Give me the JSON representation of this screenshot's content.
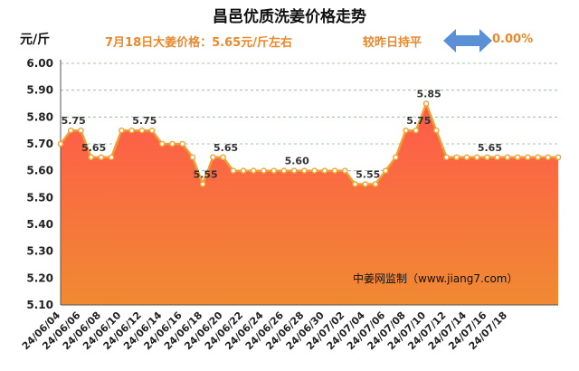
{
  "header": {
    "title": "昌邑优质洗姜价格走势",
    "unit": "元/斤",
    "price_text": "7月18日大姜价格：5.65元/斤左右",
    "compare_label": "较昨日持平",
    "compare_value": "0.00%"
  },
  "source_text": "中姜网监制（www.jiang7.com）",
  "colors": {
    "area_top": "#ff5a4a",
    "area_bottom": "#f08a32",
    "line": "#f0a030",
    "arrow": "#5b8fd6",
    "accent_text": "#e8892d"
  },
  "chart_data": {
    "type": "area",
    "title": "昌邑优质洗姜价格走势",
    "ylabel": "元/斤",
    "xlabel": "",
    "ylim": [
      5.1,
      6.0
    ],
    "yticks": [
      "6.00",
      "5.90",
      "5.80",
      "5.70",
      "5.60",
      "5.50",
      "5.40",
      "5.30",
      "5.20",
      "5.10"
    ],
    "grid": "horizontal dashed",
    "x_tick_labels": [
      "24/06/04",
      "24/06/06",
      "24/06/08",
      "24/06/10",
      "24/06/12",
      "24/06/14",
      "24/06/16",
      "24/06/18",
      "24/06/20",
      "24/06/22",
      "24/06/24",
      "24/06/26",
      "24/06/28",
      "24/06/30",
      "24/07/02",
      "24/07/04",
      "24/07/06",
      "24/07/08",
      "24/07/10",
      "24/07/12",
      "24/07/14",
      "24/07/16",
      "24/07/18"
    ],
    "values": [
      5.7,
      5.75,
      5.75,
      5.65,
      5.65,
      5.65,
      5.75,
      5.75,
      5.75,
      5.75,
      5.7,
      5.7,
      5.7,
      5.65,
      5.55,
      5.65,
      5.65,
      5.6,
      5.6,
      5.6,
      5.6,
      5.6,
      5.6,
      5.6,
      5.6,
      5.6,
      5.6,
      5.6,
      5.6,
      5.55,
      5.55,
      5.55,
      5.6,
      5.65,
      5.75,
      5.75,
      5.85,
      5.75,
      5.65,
      5.65,
      5.65,
      5.65,
      5.65,
      5.65,
      5.65,
      5.65,
      5.65,
      5.65,
      5.65,
      5.65
    ],
    "data_labels": [
      {
        "index": 1,
        "text": "5.75"
      },
      {
        "index": 3,
        "text": "5.65"
      },
      {
        "index": 8,
        "text": "5.75"
      },
      {
        "index": 14,
        "text": "5.55"
      },
      {
        "index": 16,
        "text": "5.65"
      },
      {
        "index": 23,
        "text": "5.60"
      },
      {
        "index": 30,
        "text": "5.55"
      },
      {
        "index": 35,
        "text": "5.75"
      },
      {
        "index": 36,
        "text": "5.85"
      },
      {
        "index": 42,
        "text": "5.65"
      }
    ]
  }
}
